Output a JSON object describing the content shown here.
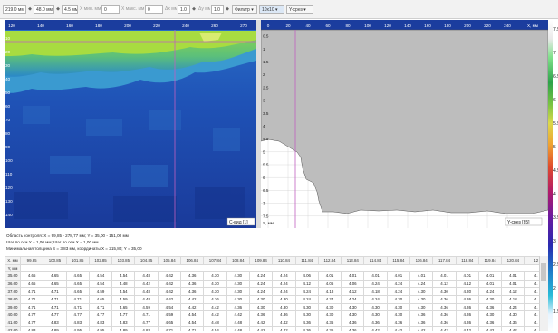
{
  "toolbar": {
    "field1": "219.0 мм",
    "field2": "48.0 мм",
    "field3": "4.5 мм",
    "cmin_label": "X мин. мм",
    "cmin_value": "0",
    "xmax_label": "X макс. мм",
    "xmax_value": "0",
    "step_label": "Δx мм",
    "step_value": "1.0",
    "dy_label": "Δy мм",
    "dy_value": "1.0",
    "filter_label": "Фильтр",
    "zoom_value": "10x10",
    "view_value": "Y-срез"
  },
  "heatmap": {
    "x_ticks": [
      "120",
      "140",
      "160",
      "180",
      "200",
      "220",
      "240",
      "260",
      "270"
    ],
    "y_ticks": [
      "10",
      "20",
      "30",
      "40",
      "50",
      "60",
      "70",
      "80",
      "90",
      "100",
      "110",
      "120",
      "130",
      "140"
    ],
    "label": "C-вид [1]"
  },
  "profile": {
    "x_ticks": [
      "0",
      "20",
      "40",
      "60",
      "80",
      "100",
      "120",
      "140",
      "160",
      "180",
      "200",
      "220",
      "240"
    ],
    "x_unit": "X, мм",
    "y_ticks": [
      "0.5",
      "1",
      "1.5",
      "2",
      "2.5",
      "3",
      "3.5",
      "4",
      "4.5",
      "5",
      "5.5",
      "6",
      "6.5",
      "7",
      "7.5"
    ],
    "y_unit": "S, мм",
    "label": "Y-срез [35]"
  },
  "color_scale": {
    "ticks": [
      "7.5",
      "7",
      "6.5",
      "6",
      "5.5",
      "5",
      "4.5",
      "4",
      "3.5",
      "3",
      "2.5",
      "2",
      "1.5"
    ],
    "marker": "4.5"
  },
  "info": {
    "line1": "Область контроля: X = 99,85 - 278,77 мм; Y = 35,00 - 151,00 мм",
    "line2": "Шаг по оси Y = 1,00 мм; Шаг по оси X = 1,00 мм",
    "line3": "Минимальная толщина S = 3,83 мм, координаты X = 215,80; Y = 35,00"
  },
  "table": {
    "corner_top": "X, мм",
    "corner_bottom": "Y, мм",
    "columns": [
      "99.85",
      "100.85",
      "101.85",
      "102.85",
      "103.85",
      "104.85",
      "105.84",
      "106.84",
      "107.84",
      "108.84",
      "109.84",
      "110.84",
      "111.84",
      "112.84",
      "113.84",
      "114.84",
      "115.84",
      "116.84",
      "117.84",
      "118.84",
      "119.84",
      "120.84",
      "12"
    ],
    "rows": [
      {
        "y": "35.00",
        "values": [
          "4.65",
          "4.65",
          "4.65",
          "4.54",
          "4.54",
          "4.48",
          "4.42",
          "4.36",
          "4.30",
          "4.30",
          "4.24",
          "4.24",
          "4.06",
          "4.01",
          "4.01",
          "4.01",
          "4.01",
          "4.01",
          "4.01",
          "4.01",
          "4.01",
          "4.01",
          "4."
        ]
      },
      {
        "y": "36.00",
        "values": [
          "4.65",
          "4.65",
          "4.65",
          "4.54",
          "4.48",
          "4.42",
          "4.42",
          "4.36",
          "4.30",
          "4.30",
          "4.24",
          "4.24",
          "4.12",
          "4.06",
          "4.06",
          "4.24",
          "4.24",
          "4.24",
          "4.12",
          "4.12",
          "4.01",
          "4.01",
          "4."
        ]
      },
      {
        "y": "37.00",
        "values": [
          "4.71",
          "4.71",
          "4.65",
          "4.59",
          "4.54",
          "4.48",
          "4.42",
          "4.36",
          "4.30",
          "4.30",
          "4.24",
          "4.24",
          "4.24",
          "4.18",
          "4.12",
          "4.18",
          "4.24",
          "4.30",
          "4.30",
          "4.30",
          "4.24",
          "4.12",
          "4."
        ]
      },
      {
        "y": "38.00",
        "values": [
          "4.71",
          "4.71",
          "4.71",
          "4.65",
          "4.59",
          "4.48",
          "4.42",
          "4.42",
          "4.36",
          "4.30",
          "4.30",
          "4.30",
          "4.24",
          "4.24",
          "4.24",
          "4.24",
          "4.30",
          "4.30",
          "4.36",
          "4.36",
          "4.30",
          "4.18",
          "4."
        ]
      },
      {
        "y": "39.00",
        "values": [
          "4.71",
          "4.71",
          "4.71",
          "4.71",
          "4.65",
          "4.59",
          "4.54",
          "4.42",
          "4.42",
          "4.36",
          "4.30",
          "4.30",
          "4.30",
          "4.30",
          "4.30",
          "4.30",
          "4.30",
          "4.30",
          "4.36",
          "4.36",
          "4.36",
          "4.24",
          "4."
        ]
      },
      {
        "y": "40.00",
        "values": [
          "4.77",
          "4.77",
          "4.77",
          "4.77",
          "4.77",
          "4.71",
          "4.59",
          "4.54",
          "4.42",
          "4.42",
          "4.36",
          "4.36",
          "4.30",
          "4.30",
          "4.30",
          "4.30",
          "4.30",
          "4.36",
          "4.36",
          "4.36",
          "4.30",
          "4.30",
          "4."
        ]
      },
      {
        "y": "41.00",
        "values": [
          "4.77",
          "4.83",
          "4.83",
          "4.83",
          "4.83",
          "4.77",
          "4.65",
          "4.54",
          "4.48",
          "4.48",
          "4.42",
          "4.42",
          "4.36",
          "4.36",
          "4.36",
          "4.36",
          "4.36",
          "4.36",
          "4.36",
          "4.36",
          "4.36",
          "4.36",
          "4."
        ]
      },
      {
        "y": "42.00",
        "values": [
          "4.83",
          "4.89",
          "4.95",
          "4.95",
          "4.89",
          "4.83",
          "4.71",
          "4.71",
          "4.54",
          "4.48",
          "4.42",
          "4.42",
          "4.36",
          "4.36",
          "4.36",
          "4.42",
          "4.42",
          "4.42",
          "4.42",
          "4.42",
          "4.42",
          "4.42",
          "4."
        ]
      },
      {
        "y": "43.00",
        "values": [
          "4.89",
          "4.95",
          "5.01",
          "5.01",
          "5.01",
          "4.95",
          "4.89",
          "4.77",
          "4.65",
          "4.54",
          "4.48",
          "4.48",
          "4.42",
          "4.42",
          "4.42",
          "4.42",
          "4.42",
          "4.42",
          "4.42",
          "4.42",
          "4.42",
          "4.42",
          "4."
        ]
      }
    ]
  },
  "colors": {
    "heat_base": "#1a40a4",
    "heat_green": "#7fcf3a",
    "profile_fill": "#bdbdbd",
    "cursor": "#c060c0"
  }
}
